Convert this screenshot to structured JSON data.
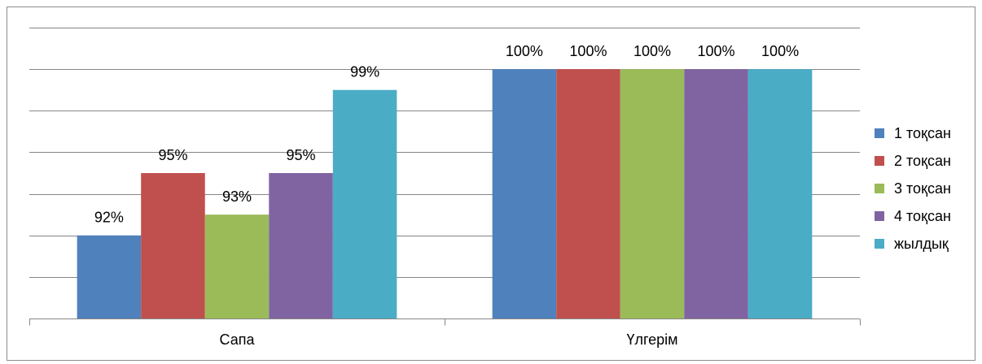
{
  "chart_data": {
    "type": "bar",
    "categories": [
      "Сапа",
      "Үлгерім"
    ],
    "series": [
      {
        "name": "1 тоқсан",
        "values": [
          92,
          100
        ],
        "labels": [
          "92%",
          "100%"
        ],
        "color": "#4f81bd"
      },
      {
        "name": "2 тоқсан",
        "values": [
          95,
          100
        ],
        "labels": [
          "95%",
          "100%"
        ],
        "color": "#c0504d"
      },
      {
        "name": "3 тоқсан",
        "values": [
          93,
          100
        ],
        "labels": [
          "93%",
          "100%"
        ],
        "color": "#9bbb59"
      },
      {
        "name": "4 тоқсан",
        "values": [
          95,
          100
        ],
        "labels": [
          "95%",
          "100%"
        ],
        "color": "#8064a2"
      },
      {
        "name": "жылдық",
        "values": [
          99,
          100
        ],
        "labels": [
          "99%",
          "100%"
        ],
        "color": "#4bacc6"
      }
    ],
    "ylim": [
      88,
      102
    ],
    "grid": true,
    "legend_position": "right",
    "title": "",
    "xlabel": "",
    "ylabel": ""
  }
}
